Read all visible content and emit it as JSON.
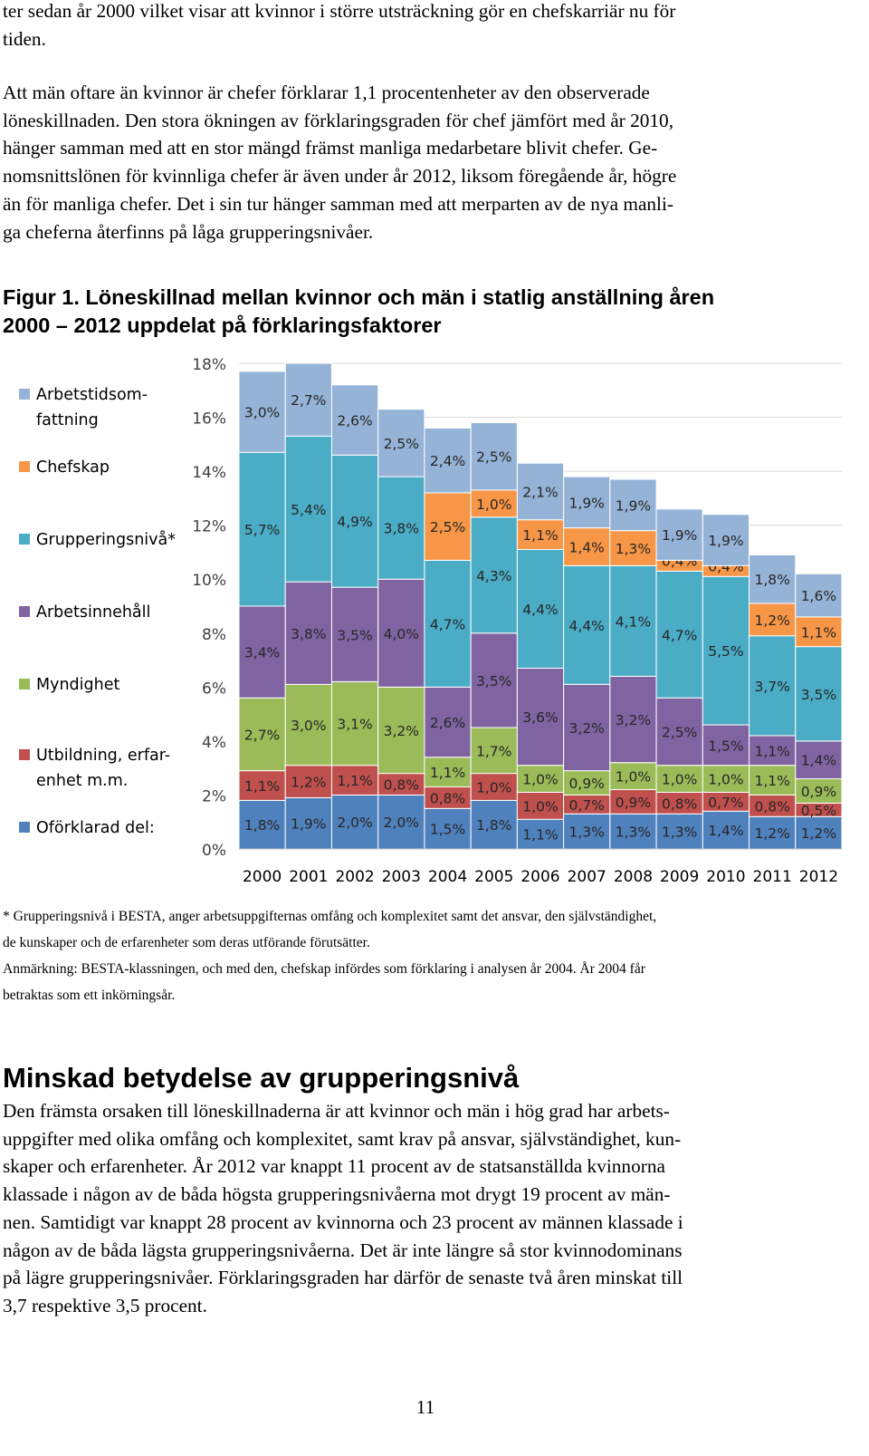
{
  "intro": {
    "lines": [
      "ter sedan år 2000 vilket visar att kvinnor i större utsträckning gör en chefskarriär nu för",
      "tiden."
    ]
  },
  "para2": {
    "lines": [
      "Att män oftare än kvinnor är chefer förklarar 1,1 procentenheter av den observerade",
      "löneskillnaden. Den stora ökningen av förklaringsgraden för chef jämfört med år 2010,",
      "hänger samman med att en stor mängd främst manliga medarbetare blivit chefer. Ge-",
      "nomsnittslönen för kvinnliga chefer är även under år 2012, liksom föregående år, högre",
      "än för manliga chefer. Det i sin tur hänger samman med att merparten av de nya manli-",
      "ga cheferna återfinns på låga grupperingsnivåer."
    ]
  },
  "figure": {
    "caption_lines": [
      "Figur 1. Löneskillnad mellan kvinnor och män i statlig anställning åren",
      "2000 – 2012 uppdelat på förklaringsfaktorer"
    ]
  },
  "chart_data": {
    "type": "bar",
    "stacked": true,
    "categories": [
      "2000",
      "2001",
      "2002",
      "2003",
      "2004",
      "2005",
      "2006",
      "2007",
      "2008",
      "2009",
      "2010",
      "2011",
      "2012"
    ],
    "ylim": [
      0,
      18
    ],
    "yticks": [
      "0%",
      "2%",
      "4%",
      "6%",
      "8%",
      "10%",
      "12%",
      "14%",
      "16%",
      "18%"
    ],
    "grid": true,
    "legend_position": "left",
    "series": [
      {
        "name": "Oförklarad del:",
        "color": "#4F81BD",
        "values": [
          1.8,
          1.9,
          2.0,
          2.0,
          1.5,
          1.8,
          1.1,
          1.3,
          1.3,
          1.3,
          1.4,
          1.2,
          1.2
        ],
        "labels": [
          "1,8%",
          "1,9%",
          "2,0%",
          "2,0%",
          "1,5%",
          "1,8%",
          "1,1%",
          "1,3%",
          "1,3%",
          "1,3%",
          "1,4%",
          "1,2%",
          "1,2%"
        ]
      },
      {
        "name": "Utbildning, erfar-enhet m.m.",
        "color": "#C0504D",
        "values": [
          1.1,
          1.2,
          1.1,
          0.8,
          0.8,
          1.0,
          1.0,
          0.7,
          0.9,
          0.8,
          0.7,
          0.8,
          0.5
        ],
        "labels": [
          "1,1%",
          "1,2%",
          "1,1%",
          "0,8%",
          "0,8%",
          "1,0%",
          "1,0%",
          "0,7%",
          "0,9%",
          "0,8%",
          "0,7%",
          "0,8%",
          "0,5%"
        ]
      },
      {
        "name": "Myndighet",
        "color": "#9BBB59",
        "values": [
          2.7,
          3.0,
          3.1,
          3.2,
          1.1,
          1.7,
          1.0,
          0.9,
          1.0,
          1.0,
          1.0,
          1.1,
          0.9
        ],
        "labels": [
          "2,7%",
          "3,0%",
          "3,1%",
          "3,2%",
          "1,1%",
          "1,7%",
          "1,0%",
          "0,9%",
          "1,0%",
          "1,0%",
          "1,0%",
          "1,1%",
          "0,9%"
        ]
      },
      {
        "name": "Arbetsinnehåll",
        "color": "#8064A2",
        "values": [
          3.4,
          3.8,
          3.5,
          4.0,
          2.6,
          3.5,
          3.6,
          3.2,
          3.2,
          2.5,
          1.5,
          1.1,
          1.4
        ],
        "labels": [
          "3,4%",
          "3,8%",
          "3,5%",
          "4,0%",
          "2,6%",
          "3,5%",
          "3,6%",
          "3,2%",
          "3,2%",
          "2,5%",
          "1,5%",
          "1,1%",
          "1,4%"
        ]
      },
      {
        "name": "Grupperingsnivå*",
        "color": "#4BACC6",
        "values": [
          5.7,
          5.4,
          4.9,
          3.8,
          4.7,
          4.3,
          4.4,
          4.4,
          4.1,
          4.7,
          5.5,
          3.7,
          3.5
        ],
        "labels": [
          "5,7%",
          "5,4%",
          "4,9%",
          "3,8%",
          "4,7%",
          "4,3%",
          "4,4%",
          "4,4%",
          "4,1%",
          "4,7%",
          "5,5%",
          "3,7%",
          "3,5%"
        ]
      },
      {
        "name": "Chefskap",
        "color": "#F79646",
        "values": [
          null,
          null,
          null,
          null,
          2.5,
          1.0,
          1.1,
          1.4,
          1.3,
          0.4,
          0.4,
          1.2,
          1.1
        ],
        "labels": [
          "",
          "",
          "",
          "",
          "2,5%",
          "1,0%",
          "1,1%",
          "1,4%",
          "1,3%",
          "0,4%",
          "0,4%",
          "1,2%",
          "1,1%"
        ]
      },
      {
        "name": "Arbetstidsom-fattning",
        "color": "#95B3D7",
        "values": [
          3.0,
          2.7,
          2.6,
          2.5,
          2.4,
          2.5,
          2.1,
          1.9,
          1.9,
          1.9,
          1.9,
          1.8,
          1.6
        ],
        "labels": [
          "3,0%",
          "2,7%",
          "2,6%",
          "2,5%",
          "2,4%",
          "2,5%",
          "2,1%",
          "1,9%",
          "1,9%",
          "1,9%",
          "1,9%",
          "1,8%",
          "1,6%"
        ]
      }
    ],
    "legend": [
      {
        "lines": [
          "Arbetstidsom-",
          "fattning"
        ],
        "color": "#95B3D7"
      },
      {
        "lines": [
          "Chefskap"
        ],
        "color": "#F79646"
      },
      {
        "lines": [
          "Grupperingsnivå*"
        ],
        "color": "#4BACC6"
      },
      {
        "lines": [
          "Arbetsinnehåll"
        ],
        "color": "#8064A2"
      },
      {
        "lines": [
          "Myndighet"
        ],
        "color": "#9BBB59"
      },
      {
        "lines": [
          "Utbildning, erfar-",
          "enhet m.m."
        ],
        "color": "#C0504D"
      },
      {
        "lines": [
          "Oförklarad del:"
        ],
        "color": "#4F81BD"
      }
    ]
  },
  "notes": {
    "note1_lines": [
      "* Grupperingsnivå i BESTA, anger arbetsuppgifternas omfång och komplexitet samt det ansvar, den självständighet,",
      "de kunskaper och de erfarenheter som deras utförande förutsätter."
    ],
    "note2_lines": [
      "Anmärkning: BESTA-klassningen, och med den, chefskap infördes som förklaring i analysen år 2004. År 2004 får",
      "betraktas som ett inkörningsår."
    ]
  },
  "section": {
    "heading": "Minskad betydelse av grupperingsnivå",
    "lines": [
      "Den främsta orsaken till löneskillnaderna är att kvinnor och män i hög grad har arbets-",
      "uppgifter med olika omfång och komplexitet, samt krav på ansvar, självständighet, kun-",
      "skaper och erfarenheter. År 2012 var knappt 11 procent av de statsanställda kvinnorna",
      "klassade i någon av de båda högsta grupperingsnivåerna mot drygt 19 procent av män-",
      "nen. Samtidigt var knappt 28 procent av kvinnorna och 23 procent av männen klassade i",
      "någon av de båda lägsta grupperingsnivåerna. Det är inte längre så stor kvinnodominans",
      "på lägre grupperingsnivåer. Förklaringsgraden har därför de senaste två åren minskat till",
      "3,7 respektive 3,5 procent."
    ]
  },
  "page_number": "11"
}
